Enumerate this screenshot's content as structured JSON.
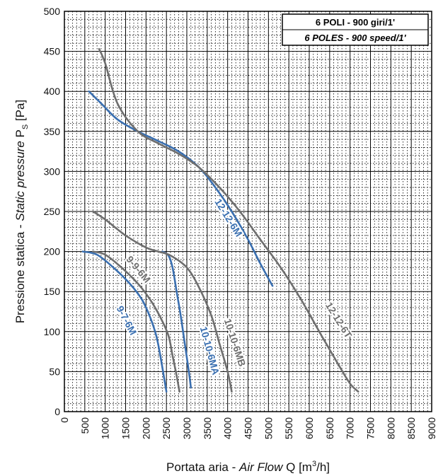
{
  "chart_data": {
    "type": "line",
    "legend": {
      "line1": "6 POLI - 900 giri/1'",
      "line2": "6 POLES - 900 speed/1'"
    },
    "xlabel": {
      "it": "Portata aria - ",
      "en": "Air Flow",
      "q": " Q [m",
      "sup": "3",
      "unit": "/h]"
    },
    "ylabel": {
      "it": "Pressione statica - ",
      "en": "Static pressure",
      "p": " P",
      "sub": "S",
      "unit": " [Pa]"
    },
    "xlim": [
      0,
      9000
    ],
    "ylim": [
      0,
      500
    ],
    "x_ticks": [
      "0",
      "500",
      "1000",
      "1500",
      "2000",
      "2500",
      "3000",
      "3500",
      "4000",
      "4500",
      "5000",
      "5500",
      "6000",
      "6500",
      "7000",
      "7500",
      "8000",
      "8500",
      "9000"
    ],
    "y_ticks": [
      "0",
      "50",
      "100",
      "150",
      "200",
      "250",
      "300",
      "350",
      "400",
      "450",
      "500"
    ],
    "grid": true,
    "series": [
      {
        "name": "9-7-6M",
        "color": "#3a6fb0",
        "x": [
          450,
          800,
          1200,
          1600,
          1900,
          2100,
          2250,
          2350,
          2450,
          2500
        ],
        "y": [
          200,
          196,
          180,
          160,
          140,
          118,
          95,
          70,
          40,
          25
        ]
      },
      {
        "name": "9-9-6M",
        "color": "#6e6e6e",
        "x": [
          700,
          1000,
          1400,
          1800,
          2100,
          2350,
          2550,
          2650,
          2750,
          2820
        ],
        "y": [
          200,
          196,
          180,
          160,
          140,
          118,
          95,
          70,
          45,
          25
        ]
      },
      {
        "name": "10-10-6MA",
        "color": "#3a6fb0",
        "x": [
          2400,
          2550,
          2650,
          2750,
          2850,
          2950,
          3050,
          3100
        ],
        "y": [
          200,
          195,
          180,
          150,
          120,
          85,
          50,
          30
        ]
      },
      {
        "name": "10-10-6MB",
        "color": "#6e6e6e",
        "x": [
          700,
          1000,
          1500,
          2000,
          2300,
          2600,
          3000,
          3300,
          3600,
          3800,
          4000,
          4100
        ],
        "y": [
          250,
          240,
          220,
          205,
          200,
          195,
          180,
          155,
          120,
          85,
          50,
          25
        ]
      },
      {
        "name": "12-12-6M",
        "color": "#3a6fb0",
        "x": [
          600,
          900,
          1300,
          1800,
          2300,
          2800,
          3300,
          3700,
          4100,
          4500,
          4800,
          5100
        ],
        "y": [
          400,
          385,
          365,
          350,
          338,
          325,
          305,
          280,
          250,
          215,
          185,
          157
        ]
      },
      {
        "name": "12-12-6T",
        "color": "#6e6e6e",
        "x": [
          850,
          1000,
          1300,
          1800,
          2300,
          2800,
          3300,
          3800,
          4300,
          4800,
          5300,
          5800,
          6300,
          6700,
          7000,
          7200
        ],
        "y": [
          453,
          435,
          385,
          350,
          335,
          322,
          305,
          280,
          250,
          215,
          180,
          140,
          95,
          60,
          35,
          25
        ]
      }
    ]
  }
}
